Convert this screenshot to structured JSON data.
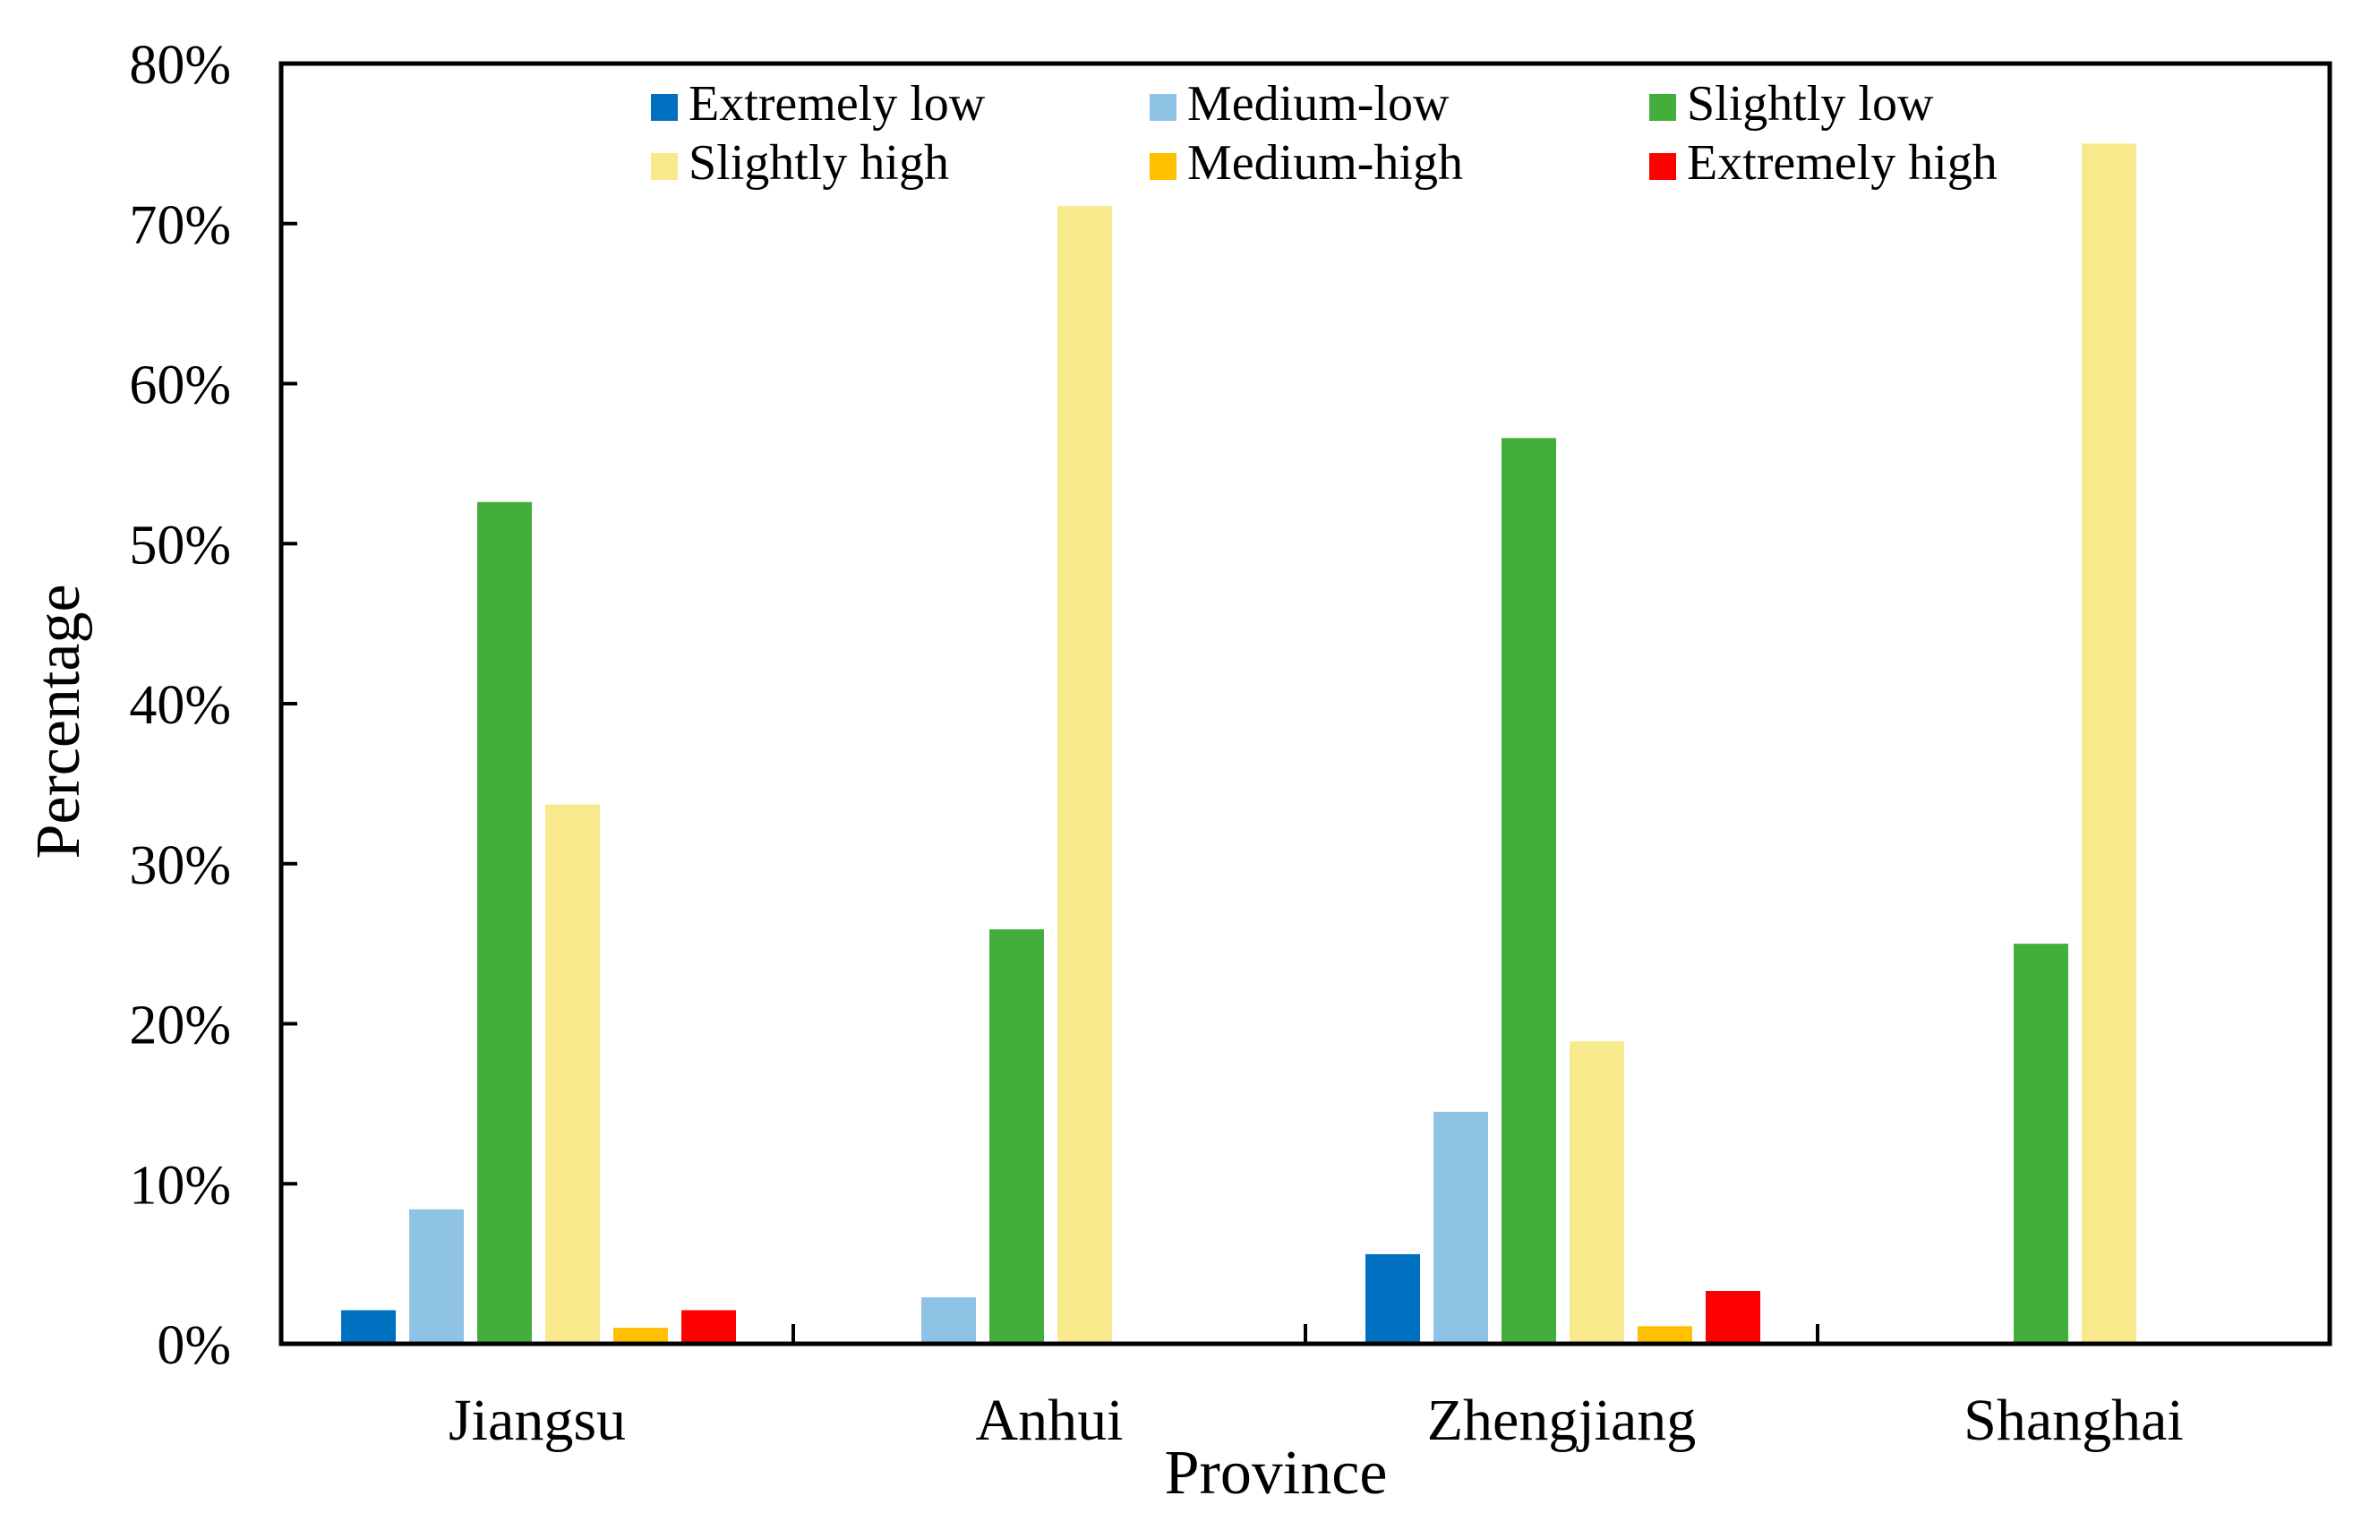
{
  "chart_data": {
    "type": "bar",
    "title": "",
    "xlabel": "Province",
    "ylabel": "Percentage",
    "categories": [
      "Jiangsu",
      "Anhui",
      "Zhengjiang",
      "Shanghai"
    ],
    "ylim": [
      0,
      80
    ],
    "yticks": [
      "0%",
      "10%",
      "20%",
      "30%",
      "40%",
      "50%",
      "60%",
      "70%",
      "80%"
    ],
    "grid": false,
    "legend_position": "top",
    "series": [
      {
        "name": "Extremely low",
        "color": "#0070C0",
        "values": [
          2.1,
          0,
          5.6,
          0
        ]
      },
      {
        "name": "Medium-low",
        "color": "#8EC3E6",
        "values": [
          8.4,
          2.9,
          14.5,
          0
        ]
      },
      {
        "name": "Slightly low",
        "color": "#43AE3B",
        "values": [
          52.6,
          25.9,
          56.6,
          25.0
        ]
      },
      {
        "name": "Slightly high",
        "color": "#F7E98C",
        "values": [
          33.7,
          71.1,
          18.9,
          75.0
        ]
      },
      {
        "name": "Medium-high",
        "color": "#FFC000",
        "values": [
          1.0,
          0,
          1.1,
          0
        ]
      },
      {
        "name": "Extremely high",
        "color": "#FF0000",
        "values": [
          2.1,
          0,
          3.3,
          0
        ]
      }
    ]
  }
}
